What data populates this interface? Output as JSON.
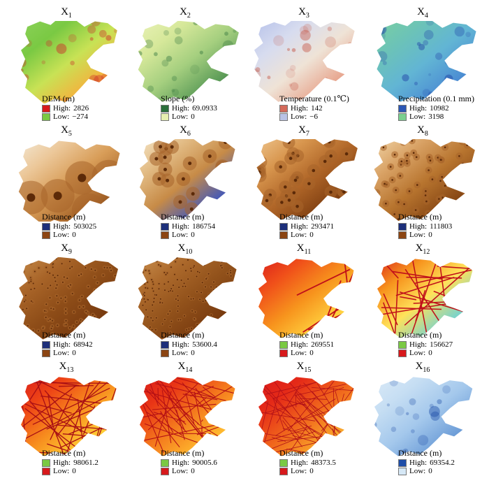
{
  "panels": [
    {
      "title": "X",
      "sub": "1",
      "legend_title": "DEM (m)",
      "high_label": "High:",
      "high_value": "2826",
      "low_label": "Low:",
      "low_value": "−274",
      "high_color": "#d7191c",
      "low_color": "#7ac943",
      "ramp": [
        "#8cd25a",
        "#7ac943",
        "#c8e255",
        "#f5b13d",
        "#d7191c"
      ],
      "shade": "#cc2e2a"
    },
    {
      "title": "X",
      "sub": "2",
      "legend_title": "Slope (%)",
      "high_label": "High:",
      "high_value": "69.0933",
      "low_label": "Low:",
      "low_value": "0",
      "high_color": "#2b6f3b",
      "low_color": "#e6efb0",
      "ramp": [
        "#eaf2b8",
        "#d6e89a",
        "#a5cf7f",
        "#5e9d59",
        "#2b6f3b"
      ],
      "shade": "#3e7d44"
    },
    {
      "title": "X",
      "sub": "3",
      "legend_title": "Temperature (0.1℃)",
      "high_label": "High:",
      "high_value": "142",
      "low_label": "Low:",
      "low_value": "−6",
      "high_color": "#d46a5b",
      "low_color": "#b9c3e6",
      "ramp": [
        "#b7c2ea",
        "#d7dcef",
        "#efe3d6",
        "#e8a891",
        "#c9563f"
      ],
      "shade": "#c65a4a"
    },
    {
      "title": "X",
      "sub": "4",
      "legend_title": "Precipitation (0.1 mm)",
      "high_label": "High:",
      "high_value": "10982",
      "low_label": "Low:",
      "low_value": "3198",
      "high_color": "#2c57b5",
      "low_color": "#7bcf8f",
      "ramp": [
        "#7bd0a0",
        "#6cc3b7",
        "#62b5d4",
        "#4d8fd3",
        "#2347a8"
      ],
      "shade": "#2347a8"
    },
    {
      "title": "X",
      "sub": "5",
      "legend_title": "Distance (m)",
      "high_label": "High:",
      "high_value": "503025",
      "low_label": "Low:",
      "low_value": "0",
      "high_color": "#1d2f7a",
      "low_color": "#8b4513",
      "ramp": [
        "#f3ead8",
        "#ecc89a",
        "#d89d58",
        "#a8662a",
        "#6b3410"
      ],
      "shade": "#6b2d0a"
    },
    {
      "title": "X",
      "sub": "6",
      "legend_title": "Distance (m)",
      "high_label": "High:",
      "high_value": "186754",
      "low_label": "Low:",
      "low_value": "0",
      "high_color": "#1d2f7a",
      "low_color": "#8b4513",
      "ramp": [
        "#f5e6c8",
        "#e2bb84",
        "#c78b47",
        "#4a5bb3",
        "#f0f0f5"
      ],
      "shade": "#7a3a10"
    },
    {
      "title": "X",
      "sub": "7",
      "legend_title": "Distance (m)",
      "high_label": "High:",
      "high_value": "293471",
      "low_label": "Low:",
      "low_value": "0",
      "high_color": "#1d2f7a",
      "low_color": "#8b4513",
      "ramp": [
        "#eec58e",
        "#d8964e",
        "#b06628",
        "#804012",
        "#5c2a08"
      ],
      "shade": "#6a300c"
    },
    {
      "title": "X",
      "sub": "8",
      "legend_title": "Distance (m)",
      "high_label": "High:",
      "high_value": "111803",
      "low_label": "Low:",
      "low_value": "0",
      "high_color": "#1d2f7a",
      "low_color": "#8b4513",
      "ramp": [
        "#f0d5a8",
        "#d9a265",
        "#b8752f",
        "#8a4a16",
        "#5c2a08"
      ],
      "shade": "#7a3a10"
    },
    {
      "title": "X",
      "sub": "9",
      "legend_title": "Distance (m)",
      "high_label": "High:",
      "high_value": "68942",
      "low_label": "Low:",
      "low_value": "0",
      "high_color": "#1d2f7a",
      "low_color": "#8b4513",
      "ramp": [
        "#c58b4b",
        "#a86428",
        "#8e4d18",
        "#7a3c10",
        "#5c2a08"
      ],
      "shade": "#1d2f7a"
    },
    {
      "title": "X",
      "sub": "10",
      "legend_title": "Distance (m)",
      "high_label": "High:",
      "high_value": "53600.4",
      "low_label": "Low:",
      "low_value": "0",
      "high_color": "#1d2f7a",
      "low_color": "#8b4513",
      "ramp": [
        "#c99050",
        "#ad6a2c",
        "#92521b",
        "#7a3c10",
        "#5c2a08"
      ],
      "shade": "#1d2f7a"
    },
    {
      "title": "X",
      "sub": "11",
      "legend_title": "Distance (m)",
      "high_label": "High:",
      "high_value": "269551",
      "low_label": "Low:",
      "low_value": "0",
      "high_color": "#7ac943",
      "low_color": "#d7191c",
      "ramp": [
        "#d7191c",
        "#f0501a",
        "#f7941d",
        "#ffd23f",
        "#8cd25a"
      ],
      "shade": "#c0101a"
    },
    {
      "title": "X",
      "sub": "12",
      "legend_title": "Distance (m)",
      "high_label": "High:",
      "high_value": "156627",
      "low_label": "Low:",
      "low_value": "0",
      "high_color": "#7ac943",
      "low_color": "#d7191c",
      "ramp": [
        "#d7191c",
        "#f7941d",
        "#ffe25a",
        "#7ed4c8",
        "#3aa9d8"
      ],
      "shade": "#c0101a"
    },
    {
      "title": "X",
      "sub": "13",
      "legend_title": "Distance (m)",
      "high_label": "High:",
      "high_value": "98061.2",
      "low_label": "Low:",
      "low_value": "0",
      "high_color": "#7ac943",
      "low_color": "#d7191c",
      "ramp": [
        "#d7191c",
        "#ee4416",
        "#f78c1e",
        "#ffcc33",
        "#9ad04f"
      ],
      "shade": "#a80f15"
    },
    {
      "title": "X",
      "sub": "14",
      "legend_title": "Distance (m)",
      "high_label": "High:",
      "high_value": "90005.6",
      "low_label": "Low:",
      "low_value": "0",
      "high_color": "#7ac943",
      "low_color": "#d7191c",
      "ramp": [
        "#d7191c",
        "#e93516",
        "#f47a1d",
        "#ffb82e",
        "#a6d24a"
      ],
      "shade": "#b30f15"
    },
    {
      "title": "X",
      "sub": "15",
      "legend_title": "Distance (m)",
      "high_label": "High:",
      "high_value": "48373.5",
      "low_label": "Low:",
      "low_value": "0",
      "high_color": "#7ac943",
      "low_color": "#d7191c",
      "ramp": [
        "#d7191c",
        "#e52a18",
        "#f0651c",
        "#f9a52a",
        "#c8d84a"
      ],
      "shade": "#b01018"
    },
    {
      "title": "X",
      "sub": "16",
      "legend_title": "Distance (m)",
      "high_label": "High:",
      "high_value": "69354.2",
      "low_label": "Low:",
      "low_value": "0",
      "high_color": "#1f4ea8",
      "low_color": "#d6e8f6",
      "ramp": [
        "#dbeaf7",
        "#c6def3",
        "#a4c8ec",
        "#6e9ed8",
        "#1f4ea8"
      ],
      "shade": "#1f4ea8"
    }
  ]
}
